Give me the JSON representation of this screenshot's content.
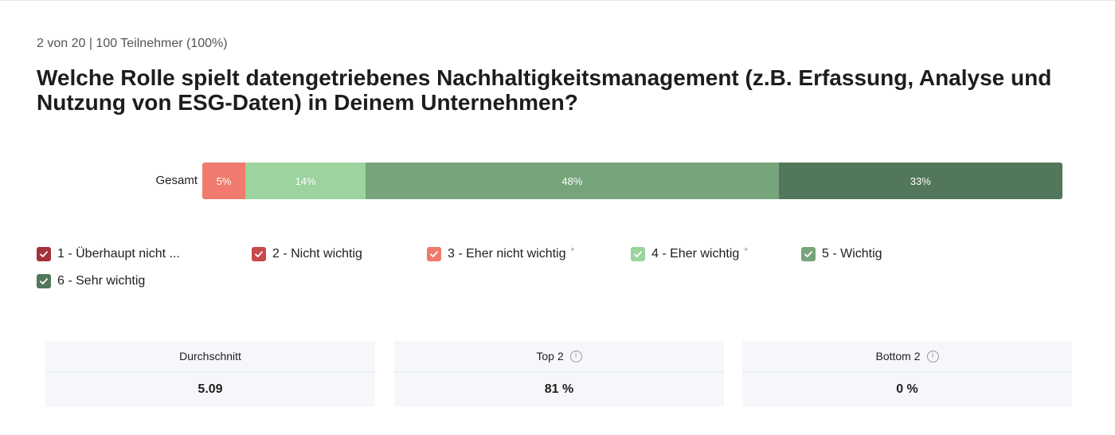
{
  "header": {
    "meta": "2 von 20 | 100 Teilnehmer (100%)",
    "question": "Welche Rolle spielt datengetriebenes Nachhaltigkeitsmanagement (z.B. Erfassung, Analyse und Nutzung von ESG-Daten) in Deinem Unternehmen?"
  },
  "chart_data": {
    "type": "bar",
    "orientation": "horizontal",
    "stacked": true,
    "categories": [
      "Gesamt"
    ],
    "series": [
      {
        "name": "1 - Überhaupt nicht ...",
        "values": [
          0
        ],
        "color": "#a1323c",
        "label": ""
      },
      {
        "name": "2 - Nicht wichtig",
        "values": [
          0
        ],
        "color": "#c64a4b",
        "label": ""
      },
      {
        "name": "3 - Eher nicht wichtig",
        "values": [
          5
        ],
        "color": "#ef7a6d",
        "label": "5%"
      },
      {
        "name": "4 - Eher wichtig",
        "values": [
          14
        ],
        "color": "#9dd39e",
        "label": "14%"
      },
      {
        "name": "5 - Wichtig",
        "values": [
          48
        ],
        "color": "#76a57c",
        "label": "48%"
      },
      {
        "name": "6 - Sehr wichtig",
        "values": [
          33
        ],
        "color": "#53775a",
        "label": "33%"
      }
    ],
    "xlim": [
      0,
      100
    ],
    "legend": "bottom"
  },
  "legend": [
    {
      "label": "1 - Überhaupt nicht ...",
      "color": "#a1323c",
      "asterisk": ""
    },
    {
      "label": "2 - Nicht wichtig",
      "color": "#c64a4b",
      "asterisk": ""
    },
    {
      "label": "3 - Eher nicht wichtig",
      "color": "#ef7a6d",
      "asterisk": "*"
    },
    {
      "label": "4 - Eher wichtig",
      "color": "#9dd39e",
      "asterisk": "*"
    },
    {
      "label": "5 - Wichtig",
      "color": "#76a57c",
      "asterisk": ""
    },
    {
      "label": "6 - Sehr wichtig",
      "color": "#53775a",
      "asterisk": ""
    }
  ],
  "stats": [
    {
      "label": "Durchschnitt",
      "value": "5.09",
      "info": false
    },
    {
      "label": "Top 2",
      "value": "81 %",
      "info": true
    },
    {
      "label": "Bottom 2",
      "value": "0 %",
      "info": true
    }
  ],
  "icons": {
    "check": "check-icon",
    "info": "info-icon",
    "info_glyph": "i"
  }
}
